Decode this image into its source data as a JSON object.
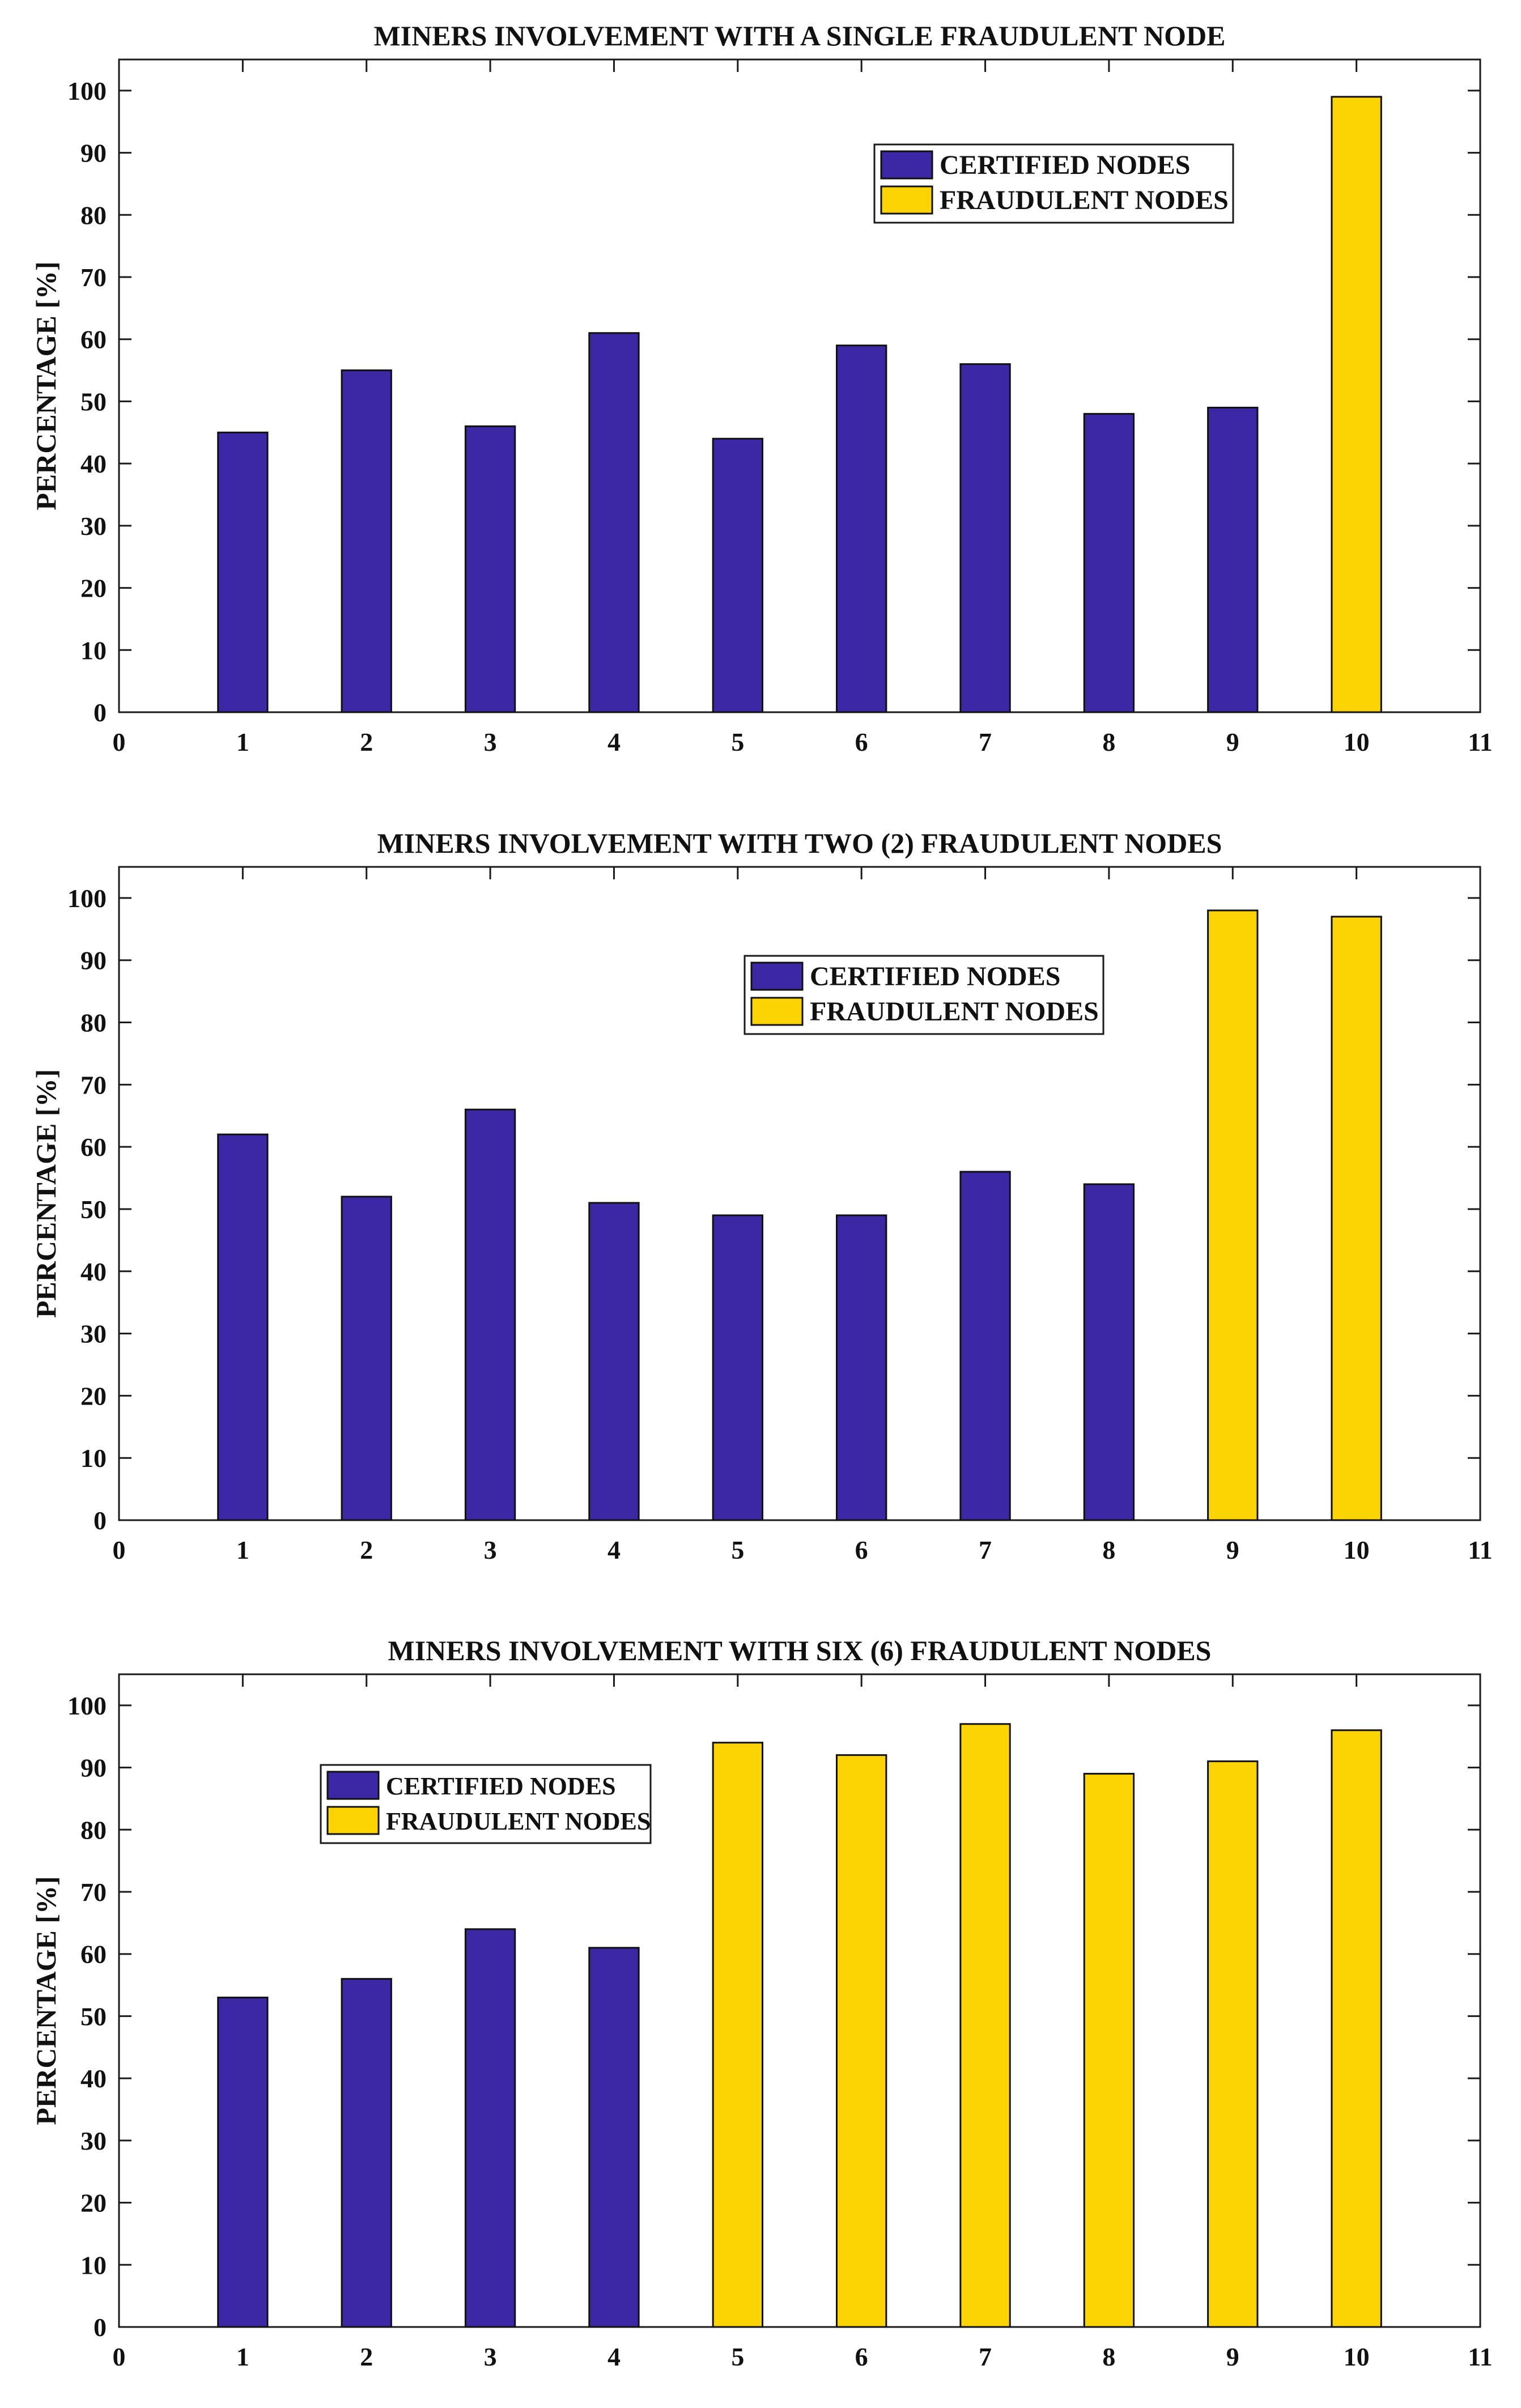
{
  "colors": {
    "certified": "#3c28a4",
    "fraudulent": "#fcd403",
    "axis": "#1a1a1a",
    "text": "#111111"
  },
  "chart_data": [
    {
      "type": "bar",
      "title": "MINERS INVOLVEMENT WITH A SINGLE FRAUDULENT NODE",
      "xlabel": "",
      "ylabel": "PERCENTAGE [%]",
      "xlim": [
        0,
        11
      ],
      "ylim": [
        0,
        105
      ],
      "xticks": [
        0,
        1,
        2,
        3,
        4,
        5,
        6,
        7,
        8,
        9,
        10,
        11
      ],
      "yticks": [
        0,
        10,
        20,
        30,
        40,
        50,
        60,
        70,
        80,
        90,
        100
      ],
      "legend_position": "top-right",
      "grid": false,
      "series": [
        {
          "name": "CERTIFIED NODES",
          "color_key": "certified",
          "x": [
            1,
            2,
            3,
            4,
            5,
            6,
            7,
            8,
            9
          ],
          "values": [
            45,
            55,
            46,
            61,
            44,
            59,
            56,
            48,
            49
          ]
        },
        {
          "name": "FRAUDULENT NODES",
          "color_key": "fraudulent",
          "x": [
            10
          ],
          "values": [
            99
          ]
        }
      ]
    },
    {
      "type": "bar",
      "title": "MINERS INVOLVEMENT WITH TWO (2) FRAUDULENT NODES",
      "xlabel": "",
      "ylabel": "PERCENTAGE [%]",
      "xlim": [
        0,
        11
      ],
      "ylim": [
        0,
        105
      ],
      "xticks": [
        0,
        1,
        2,
        3,
        4,
        5,
        6,
        7,
        8,
        9,
        10,
        11
      ],
      "yticks": [
        0,
        10,
        20,
        30,
        40,
        50,
        60,
        70,
        80,
        90,
        100
      ],
      "legend_position": "top-center",
      "grid": false,
      "series": [
        {
          "name": "CERTIFIED NODES",
          "color_key": "certified",
          "x": [
            1,
            2,
            3,
            4,
            5,
            6,
            7,
            8
          ],
          "values": [
            62,
            52,
            66,
            51,
            49,
            49,
            56,
            54
          ]
        },
        {
          "name": "FRAUDULENT NODES",
          "color_key": "fraudulent",
          "x": [
            9,
            10
          ],
          "values": [
            98,
            97
          ]
        }
      ]
    },
    {
      "type": "bar",
      "title": "MINERS INVOLVEMENT WITH SIX (6) FRAUDULENT NODES",
      "xlabel": "",
      "ylabel": "PERCENTAGE [%]",
      "xlim": [
        0,
        11
      ],
      "ylim": [
        0,
        105
      ],
      "xticks": [
        0,
        1,
        2,
        3,
        4,
        5,
        6,
        7,
        8,
        9,
        10,
        11
      ],
      "yticks": [
        0,
        10,
        20,
        30,
        40,
        50,
        60,
        70,
        80,
        90,
        100
      ],
      "legend_position": "top-left",
      "grid": false,
      "series": [
        {
          "name": "CERTIFIED NODES",
          "color_key": "certified",
          "x": [
            1,
            2,
            3,
            4
          ],
          "values": [
            53,
            56,
            64,
            61
          ]
        },
        {
          "name": "FRAUDULENT NODES",
          "color_key": "fraudulent",
          "x": [
            5,
            6,
            7,
            8,
            9,
            10
          ],
          "values": [
            94,
            92,
            97,
            89,
            91,
            96
          ]
        }
      ]
    }
  ]
}
